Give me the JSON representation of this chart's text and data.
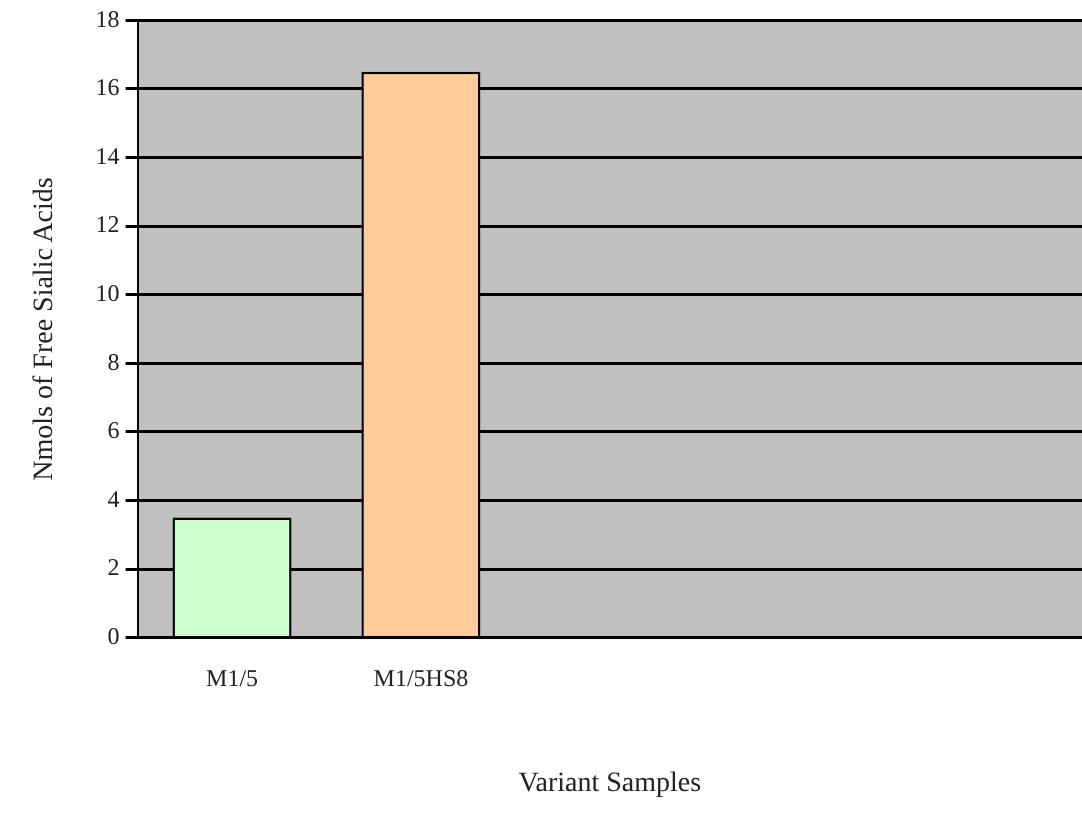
{
  "chart_data": {
    "type": "bar",
    "xlabel": "Variant Samples",
    "ylabel": "Nmols of Free Sialic Acids",
    "categories": [
      "M1/5",
      "M1/5HS8",
      null,
      null,
      null
    ],
    "values": [
      3.5,
      16.5,
      null,
      null,
      null
    ],
    "colors": [
      "#ccffcc",
      "#ffcc99",
      "#ccffcc",
      "#ffcc99",
      "#ccffcc"
    ],
    "ylim": [
      0,
      18
    ],
    "yticks": [
      0,
      2,
      4,
      6,
      8,
      10,
      12,
      14,
      16,
      18
    ],
    "grid": "y",
    "legend": false
  }
}
